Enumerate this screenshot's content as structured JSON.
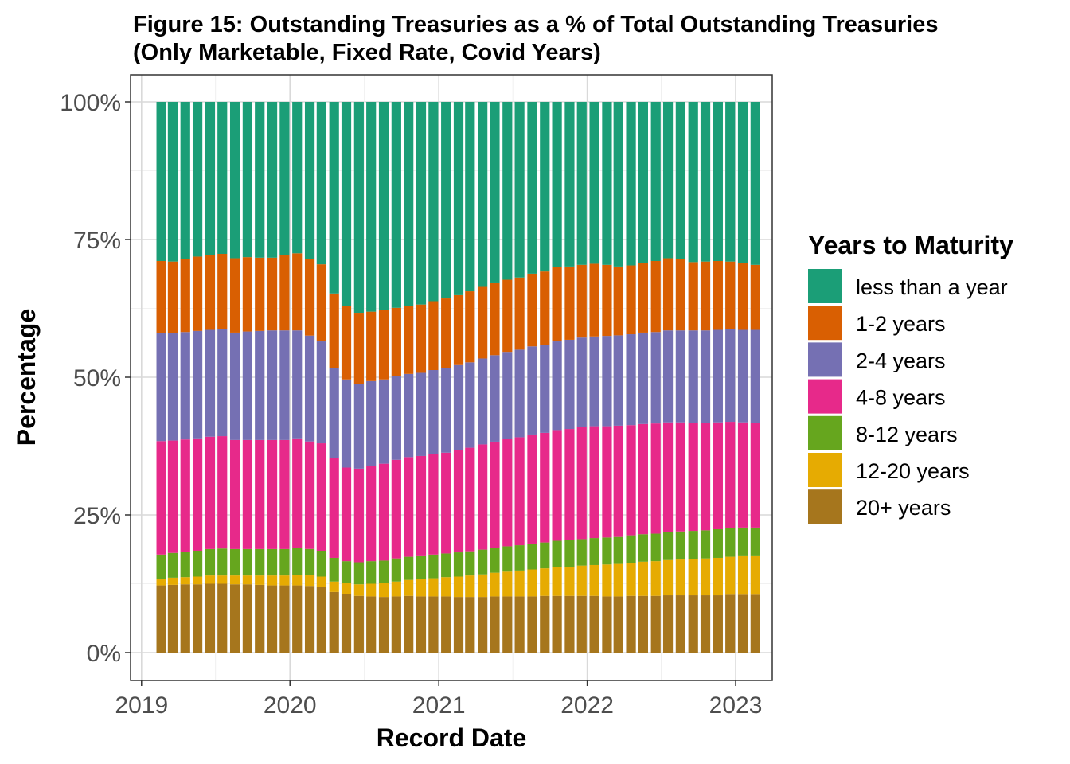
{
  "chart_data": {
    "type": "bar",
    "stacked": true,
    "title": "Figure 15: Outstanding Treasuries as a % of Total Outstanding Treasuries",
    "subtitle": "(Only Marketable, Fixed Rate, Covid Years)",
    "xlabel": "Record Date",
    "ylabel": "Percentage",
    "ylim": [
      0,
      100
    ],
    "y_ticks": [
      "0%",
      "25%",
      "50%",
      "75%",
      "100%"
    ],
    "x_ticks": [
      "2019",
      "2020",
      "2021",
      "2022",
      "2023"
    ],
    "x_range": [
      "2018-12-05",
      "2023-04-01"
    ],
    "grid": true,
    "legend": {
      "title": "Years to Maturity",
      "position": "right"
    },
    "categories": [
      "2019-02",
      "2019-03",
      "2019-04",
      "2019-05",
      "2019-06",
      "2019-07",
      "2019-08",
      "2019-09",
      "2019-10",
      "2019-11",
      "2019-12",
      "2020-01",
      "2020-02",
      "2020-03",
      "2020-04",
      "2020-05",
      "2020-06",
      "2020-07",
      "2020-08",
      "2020-09",
      "2020-10",
      "2020-11",
      "2020-12",
      "2021-01",
      "2021-02",
      "2021-03",
      "2021-04",
      "2021-05",
      "2021-06",
      "2021-07",
      "2021-08",
      "2021-09",
      "2021-10",
      "2021-11",
      "2021-12",
      "2022-01",
      "2022-02",
      "2022-03",
      "2022-04",
      "2022-05",
      "2022-06",
      "2022-07",
      "2022-08",
      "2022-09",
      "2022-10",
      "2022-11",
      "2022-12",
      "2023-01",
      "2023-02"
    ],
    "series": [
      {
        "name": "20+ years",
        "color": "#A6761D",
        "values": [
          12.2,
          12.3,
          12.4,
          12.4,
          12.5,
          12.5,
          12.4,
          12.4,
          12.3,
          12.2,
          12.2,
          12.2,
          12.1,
          11.9,
          11.0,
          10.6,
          10.3,
          10.2,
          10.1,
          10.2,
          10.3,
          10.2,
          10.2,
          10.2,
          10.1,
          10.1,
          10.1,
          10.2,
          10.2,
          10.2,
          10.2,
          10.3,
          10.3,
          10.3,
          10.3,
          10.3,
          10.2,
          10.2,
          10.3,
          10.3,
          10.3,
          10.4,
          10.4,
          10.4,
          10.4,
          10.4,
          10.5,
          10.5,
          10.5
        ]
      },
      {
        "name": "12-20 years",
        "color": "#E6AB02",
        "values": [
          1.2,
          1.3,
          1.3,
          1.4,
          1.5,
          1.5,
          1.6,
          1.6,
          1.7,
          1.8,
          1.8,
          1.9,
          1.9,
          1.9,
          1.9,
          2.0,
          2.1,
          2.3,
          2.5,
          2.7,
          2.9,
          3.1,
          3.3,
          3.5,
          3.7,
          3.9,
          4.1,
          4.3,
          4.5,
          4.7,
          4.9,
          5.0,
          5.2,
          5.3,
          5.5,
          5.6,
          5.8,
          5.9,
          6.0,
          6.2,
          6.3,
          6.4,
          6.5,
          6.6,
          6.7,
          6.8,
          6.9,
          7.0,
          7.0
        ]
      },
      {
        "name": "8-12 years",
        "color": "#66A61E",
        "values": [
          4.4,
          4.5,
          4.6,
          4.7,
          4.8,
          4.9,
          4.8,
          4.8,
          4.8,
          4.8,
          4.8,
          4.9,
          4.8,
          4.7,
          4.3,
          4.0,
          4.0,
          4.1,
          4.1,
          4.2,
          4.2,
          4.2,
          4.3,
          4.3,
          4.4,
          4.4,
          4.5,
          4.5,
          4.6,
          4.6,
          4.7,
          4.7,
          4.8,
          4.8,
          4.8,
          4.9,
          4.9,
          4.9,
          5.0,
          5.0,
          5.0,
          5.1,
          5.1,
          5.1,
          5.1,
          5.2,
          5.2,
          5.2,
          5.2
        ]
      },
      {
        "name": "4-8 years",
        "color": "#E7298A",
        "values": [
          20.6,
          20.4,
          20.4,
          20.4,
          20.4,
          20.4,
          19.8,
          19.8,
          19.8,
          19.8,
          19.8,
          19.9,
          19.5,
          19.5,
          18.1,
          17.0,
          17.0,
          17.3,
          17.6,
          17.9,
          18.1,
          18.2,
          18.3,
          18.3,
          18.6,
          18.8,
          19.1,
          19.3,
          19.5,
          19.6,
          19.8,
          19.9,
          20.1,
          20.2,
          20.3,
          20.3,
          20.2,
          20.2,
          20.0,
          20.0,
          20.0,
          19.9,
          19.8,
          19.6,
          19.5,
          19.4,
          19.3,
          19.1,
          19.0
        ]
      },
      {
        "name": "2-4 years",
        "color": "#7570B3",
        "values": [
          19.6,
          19.5,
          19.5,
          19.5,
          19.4,
          19.4,
          19.5,
          19.7,
          19.8,
          19.9,
          19.9,
          19.6,
          19.2,
          18.5,
          16.4,
          16.0,
          15.4,
          15.4,
          15.3,
          15.2,
          15.1,
          15.1,
          15.2,
          15.3,
          15.4,
          15.5,
          15.6,
          15.7,
          15.8,
          15.9,
          16.0,
          16.0,
          16.1,
          16.2,
          16.3,
          16.3,
          16.4,
          16.4,
          16.5,
          16.6,
          16.6,
          16.7,
          16.7,
          16.8,
          16.8,
          16.8,
          16.8,
          16.8,
          16.9
        ]
      },
      {
        "name": "1-2 years",
        "color": "#D95F02",
        "values": [
          13.1,
          13.0,
          13.2,
          13.5,
          13.6,
          13.7,
          13.5,
          13.5,
          13.3,
          13.2,
          13.7,
          14.0,
          13.9,
          14.0,
          13.5,
          13.4,
          12.9,
          12.6,
          12.6,
          12.4,
          12.4,
          12.4,
          12.5,
          12.7,
          12.7,
          12.9,
          13.0,
          13.2,
          13.1,
          13.1,
          13.2,
          13.3,
          13.5,
          13.3,
          13.2,
          13.2,
          12.9,
          12.5,
          12.5,
          12.6,
          12.9,
          13.1,
          13.0,
          12.4,
          12.5,
          12.5,
          12.3,
          12.2,
          11.8
        ]
      },
      {
        "name": "less than a year",
        "color": "#1B9E77",
        "values": [
          28.9,
          29.0,
          28.6,
          28.1,
          27.8,
          27.6,
          28.4,
          28.2,
          28.3,
          28.3,
          27.8,
          27.5,
          28.5,
          29.5,
          34.8,
          37.0,
          38.3,
          38.1,
          37.8,
          37.4,
          37.0,
          36.8,
          36.2,
          35.7,
          35.1,
          34.4,
          33.6,
          32.8,
          32.3,
          31.9,
          31.2,
          30.8,
          30.0,
          29.9,
          29.6,
          29.4,
          29.6,
          29.9,
          29.7,
          29.3,
          28.9,
          28.4,
          28.5,
          29.1,
          29.0,
          28.9,
          29.0,
          29.2,
          29.6
        ]
      }
    ]
  }
}
